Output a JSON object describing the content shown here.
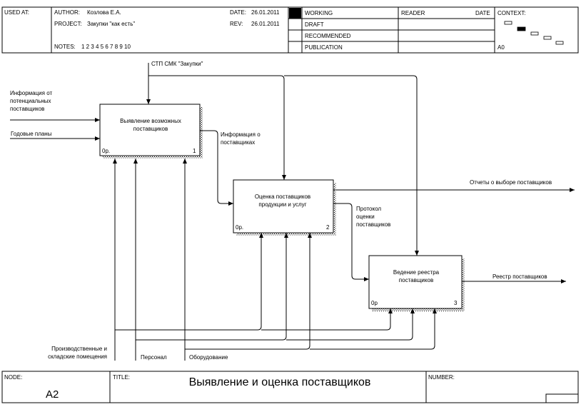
{
  "header": {
    "used_at_label": "USED AT:",
    "author_label": "AUTHOR:",
    "author": "Козлова Е.А.",
    "project_label": "PROJECT:",
    "project": "Закупки \"как есть\"",
    "date_label": "DATE:",
    "date": "26.01.2011",
    "rev_label": "REV:",
    "rev": "26.01.2011",
    "notes_label": "NOTES:",
    "notes": "1 2 3 4 5 6 7 8 9 10",
    "status": [
      "WORKING",
      "DRAFT",
      "RECOMMENDED",
      "PUBLICATION"
    ],
    "reader_label": "READER",
    "reader_date_label": "DATE",
    "context_label": "CONTEXT:",
    "context_node": "A0"
  },
  "activities": [
    {
      "title_line1": "Выявление возможных",
      "title_line2": "поставщиков",
      "cost": "0р.",
      "number": "1"
    },
    {
      "title_line1": "Оценка поставщиков",
      "title_line2": "продукции и услуг",
      "cost": "0р.",
      "number": "2"
    },
    {
      "title_line1": "Ведение реестра",
      "title_line2": "поставщиков",
      "cost": "0р",
      "number": "3"
    }
  ],
  "arrows": {
    "control": "СТП СМК \"Закупки\"",
    "input_info_1": "Информация от",
    "input_info_2": "потенциальных",
    "input_info_3": "поставщиков",
    "input_plans": "Годовые планы",
    "out1_1": "Информация о",
    "out1_2": "поставщиках",
    "out_reports": "Отчеты о выборе поставщиков",
    "protocol_1": "Протокол",
    "protocol_2": "оценки",
    "protocol_3": "поставщиков",
    "registry": "Реестр поставщиков",
    "mech_premises_1": "Производственные и",
    "mech_premises_2": "складские помещения",
    "mech_staff": "Персонал",
    "mech_equipment": "Оборудование"
  },
  "footer": {
    "node_label": "NODE:",
    "node": "A2",
    "title_label": "TITLE:",
    "title": "Выявление и оценка поставщиков",
    "number_label": "NUMBER:"
  }
}
